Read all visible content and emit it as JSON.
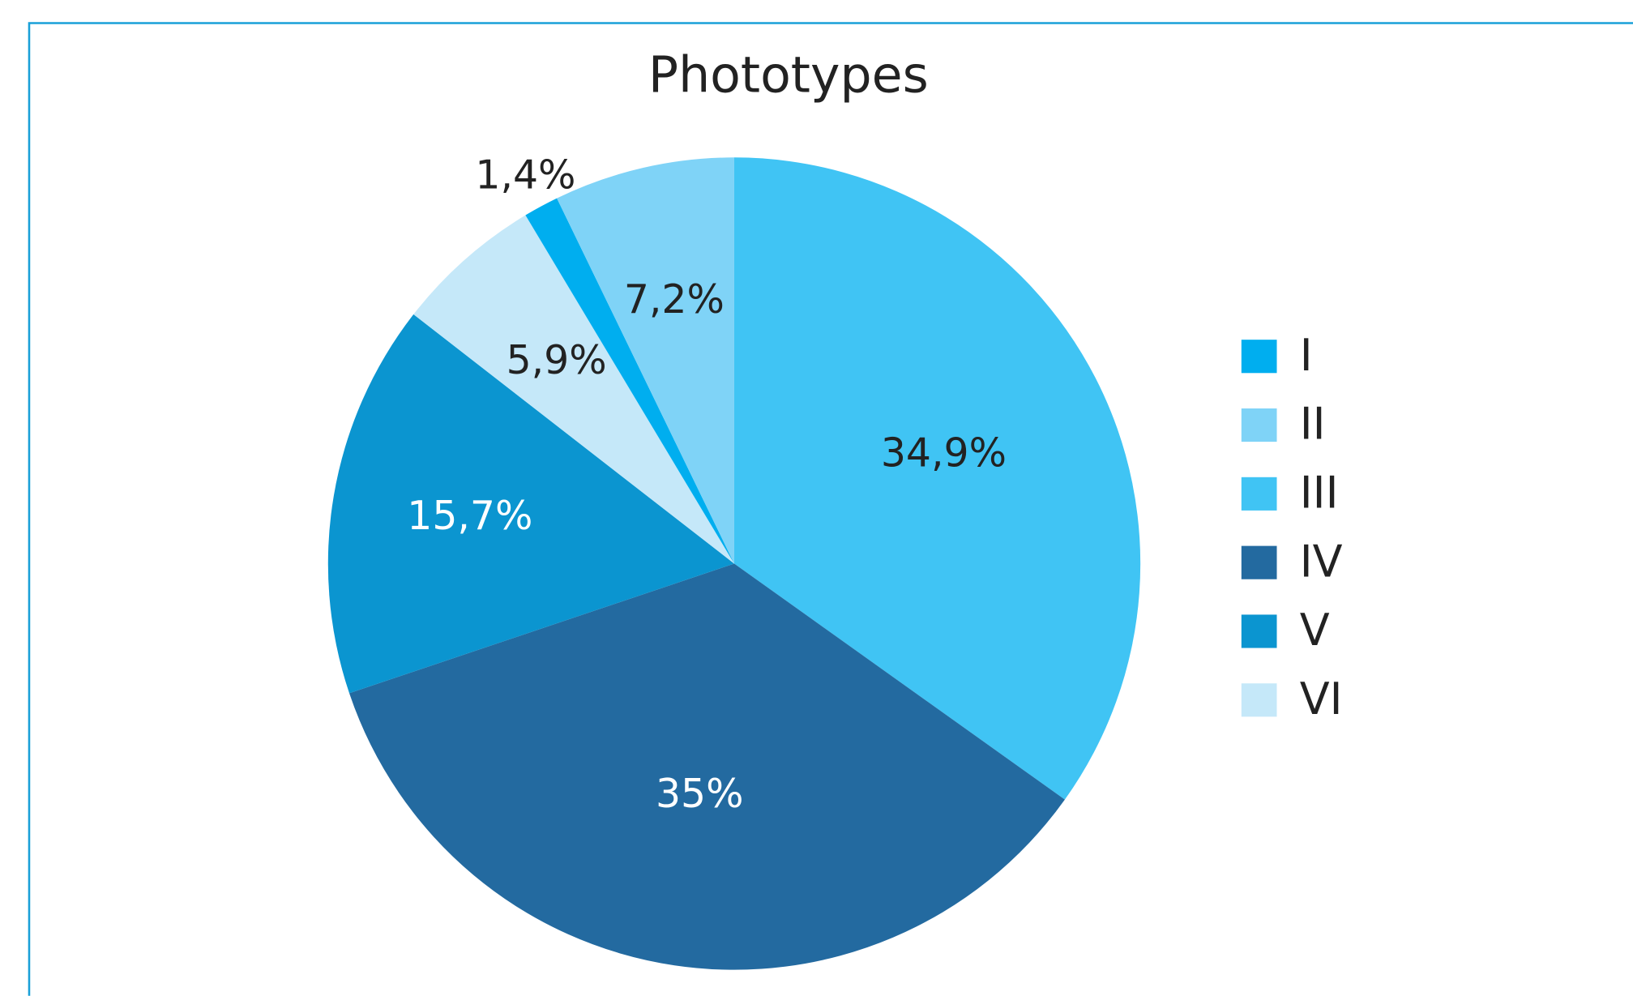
{
  "chart_data": {
    "type": "pie",
    "title": "Phototypes",
    "categories": [
      "I",
      "II",
      "III",
      "IV",
      "V",
      "VI"
    ],
    "values": [
      1.4,
      7.2,
      34.9,
      35,
      15.7,
      5.9
    ],
    "value_labels": [
      "1,4%",
      "7,2%",
      "34,9%",
      "35%",
      "15,7%",
      "5,9%"
    ],
    "colors": [
      "#00aeef",
      "#7fd3f7",
      "#40c4f4",
      "#236aa0",
      "#0b95d0",
      "#c5e8f9"
    ],
    "legend": "right"
  }
}
